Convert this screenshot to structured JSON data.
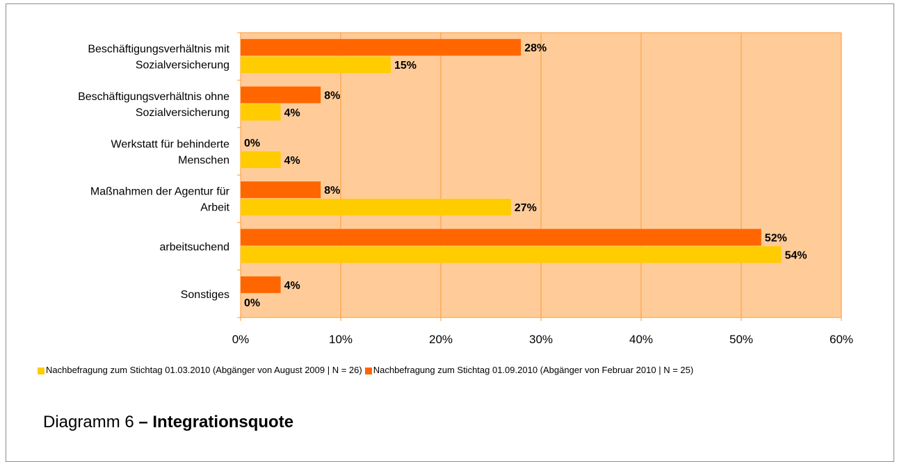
{
  "chart_data": {
    "type": "bar",
    "orientation": "horizontal",
    "categories": [
      "Beschäftigungsverhältnis mit Sozialversicherung",
      "Beschäftigungsverhältnis ohne Sozialversicherung",
      "Werkstatt für behinderte Menschen",
      "Maßnahmen der Agentur für Arbeit",
      "arbeitsuchend",
      "Sonstiges"
    ],
    "category_label_lines": [
      [
        "Beschäftigungsverhältnis mit",
        "Sozialversicherung"
      ],
      [
        "Beschäftigungsverhältnis ohne",
        "Sozialversicherung"
      ],
      [
        "Werkstatt für behinderte",
        "Menschen"
      ],
      [
        "Maßnahmen der Agentur für",
        "Arbeit"
      ],
      [
        "arbeitsuchend"
      ],
      [
        "Sonstiges"
      ]
    ],
    "series": [
      {
        "name": "Nachbefragung zum Stichtag 01.03.2010 (Abgänger von August 2009 | N = 26)",
        "color": "#ffcc00",
        "values": [
          15,
          4,
          4,
          27,
          54,
          0
        ]
      },
      {
        "name": "Nachbefragung zum Stichtag 01.09.2010 (Abgänger von Februar 2010 | N = 25)",
        "color": "#ff6600",
        "values": [
          28,
          8,
          0,
          8,
          52,
          4
        ]
      }
    ],
    "bar_order_within_category": [
      "Nachbefragung zum Stichtag 01.09.2010 (Abgänger von Februar 2010 | N = 25)",
      "Nachbefragung zum Stichtag 01.03.2010 (Abgänger von August 2009 | N = 26)"
    ],
    "xlim": [
      0,
      60
    ],
    "x_ticks": [
      "0%",
      "10%",
      "20%",
      "30%",
      "40%",
      "50%",
      "60%"
    ],
    "value_suffix": "%",
    "plot_background": "#ffcc99",
    "gridline_color": "#ff9933",
    "grid": true,
    "legend_position": "bottom"
  },
  "legend": {
    "items": [
      {
        "label": "Nachbefragung zum Stichtag 01.03.2010 (Abgänger von August 2009 | N = 26)",
        "color": "#ffcc00"
      },
      {
        "label": "Nachbefragung zum Stichtag 01.09.2010 (Abgänger von Februar 2010 | N = 25)",
        "color": "#ff6600"
      }
    ]
  },
  "caption": {
    "prefix": "Diagramm 6 ",
    "bold": "– Integrationsquote"
  }
}
